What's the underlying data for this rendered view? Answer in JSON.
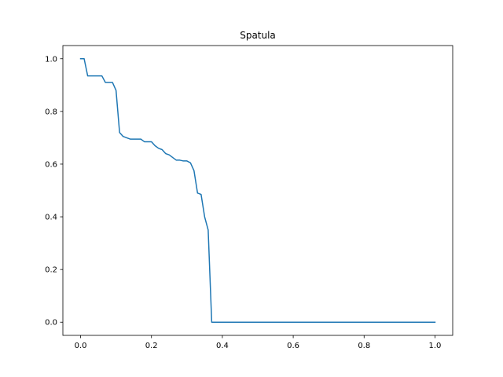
{
  "chart_data": {
    "type": "line",
    "title": "Spatula",
    "xlabel": "",
    "ylabel": "",
    "xlim": [
      -0.05,
      1.05
    ],
    "ylim": [
      -0.05,
      1.05
    ],
    "xticks": [
      0.0,
      0.2,
      0.4,
      0.6,
      0.8,
      1.0
    ],
    "xtick_labels": [
      "0.0",
      "0.2",
      "0.4",
      "0.6",
      "0.8",
      "1.0"
    ],
    "yticks": [
      0.0,
      0.2,
      0.4,
      0.6,
      0.8,
      1.0
    ],
    "ytick_labels": [
      "0.0",
      "0.2",
      "0.4",
      "0.6",
      "0.8",
      "1.0"
    ],
    "grid": false,
    "series": [
      {
        "color": "#1f77b4",
        "x": [
          0.0,
          0.01,
          0.02,
          0.03,
          0.04,
          0.05,
          0.06,
          0.07,
          0.08,
          0.09,
          0.1,
          0.11,
          0.12,
          0.13,
          0.14,
          0.15,
          0.16,
          0.17,
          0.18,
          0.19,
          0.2,
          0.21,
          0.22,
          0.23,
          0.24,
          0.25,
          0.26,
          0.27,
          0.28,
          0.29,
          0.3,
          0.31,
          0.32,
          0.33,
          0.34,
          0.35,
          0.36,
          0.37,
          0.38,
          0.4,
          0.5,
          0.6,
          0.7,
          0.8,
          0.9,
          1.0
        ],
        "y": [
          1.0,
          1.0,
          0.935,
          0.935,
          0.935,
          0.935,
          0.935,
          0.91,
          0.91,
          0.91,
          0.88,
          0.72,
          0.705,
          0.7,
          0.695,
          0.695,
          0.695,
          0.695,
          0.685,
          0.685,
          0.685,
          0.67,
          0.66,
          0.655,
          0.64,
          0.635,
          0.625,
          0.615,
          0.615,
          0.612,
          0.612,
          0.605,
          0.575,
          0.49,
          0.485,
          0.4,
          0.35,
          0.0,
          0.0,
          0.0,
          0.0,
          0.0,
          0.0,
          0.0,
          0.0,
          0.0
        ]
      }
    ]
  }
}
